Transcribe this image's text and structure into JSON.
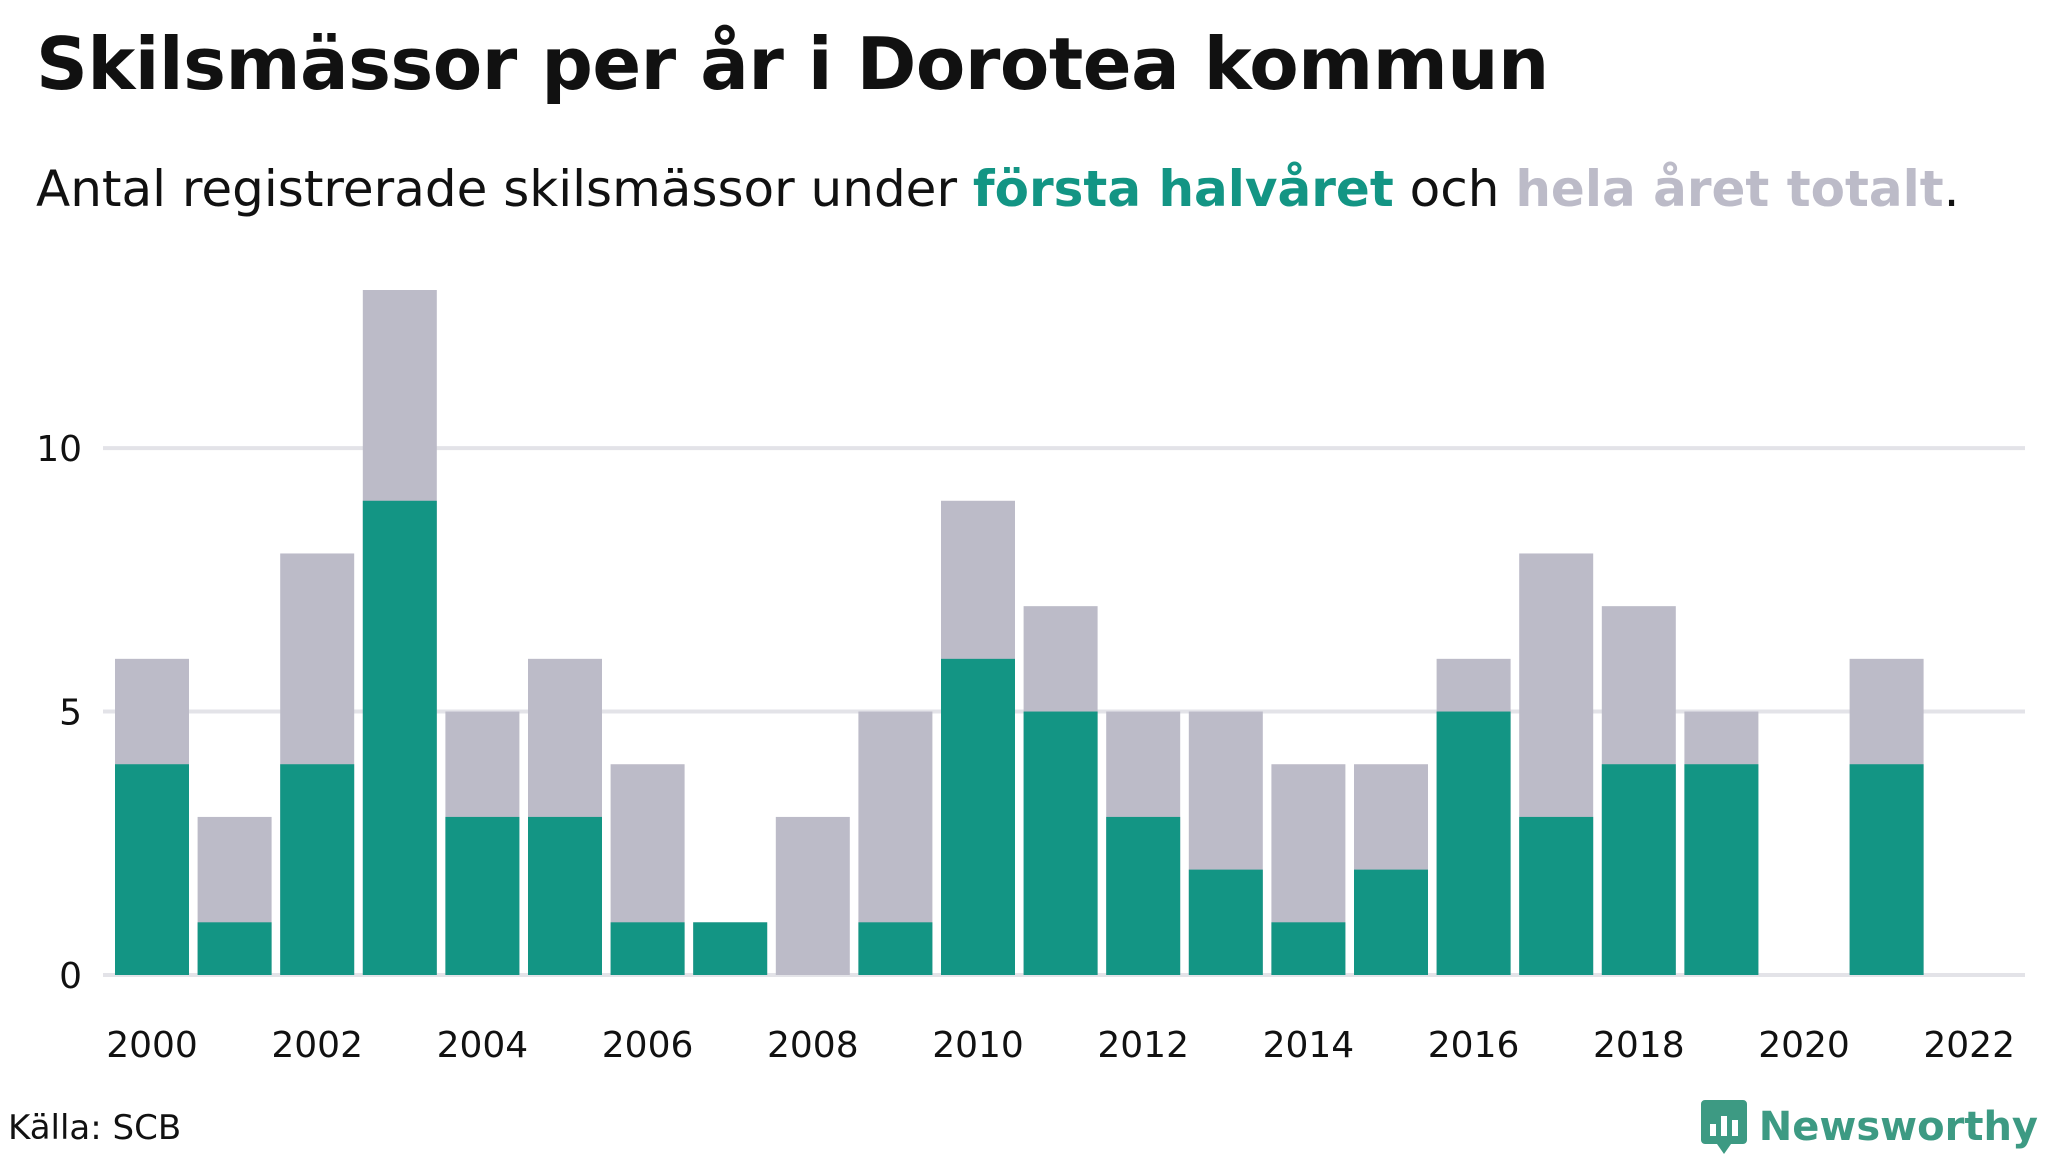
{
  "title": "Skilsmässor per år i Dorotea kommun",
  "subtitle": {
    "prefix": "Antal registrerade skilsmässor under ",
    "highlight1": "första halvåret",
    "middle": " och ",
    "highlight2": "hela året totalt",
    "suffix": "."
  },
  "colors": {
    "first_half": "#139584",
    "total": "#bcbbc8",
    "grid": "#e3e3e8",
    "brand": "#3d9a83"
  },
  "source": "Källa: SCB",
  "brand": {
    "name": "Newsworthy",
    "icon": "newsworthy-logo-icon"
  },
  "chart_data": {
    "type": "bar",
    "x": [
      2000,
      2001,
      2002,
      2003,
      2004,
      2005,
      2006,
      2007,
      2008,
      2009,
      2010,
      2011,
      2012,
      2013,
      2014,
      2015,
      2016,
      2017,
      2018,
      2019,
      2020,
      2021
    ],
    "series": [
      {
        "name": "hela året totalt",
        "values": [
          6,
          3,
          8,
          13,
          5,
          6,
          4,
          1,
          3,
          5,
          9,
          7,
          5,
          5,
          4,
          4,
          6,
          8,
          7,
          5,
          0,
          6
        ]
      },
      {
        "name": "första halvåret",
        "values": [
          4,
          1,
          4,
          9,
          3,
          3,
          1,
          1,
          0,
          1,
          6,
          5,
          3,
          2,
          1,
          2,
          5,
          3,
          4,
          4,
          0,
          4
        ]
      }
    ],
    "xticks": [
      "2000",
      "2002",
      "2004",
      "2006",
      "2008",
      "2010",
      "2012",
      "2014",
      "2016",
      "2018",
      "2020",
      "2022"
    ],
    "yticks": [
      "0",
      "5",
      "10"
    ],
    "xlim": [
      1999.5,
      2022.5
    ],
    "ylim": [
      0,
      13
    ],
    "grid": true
  }
}
